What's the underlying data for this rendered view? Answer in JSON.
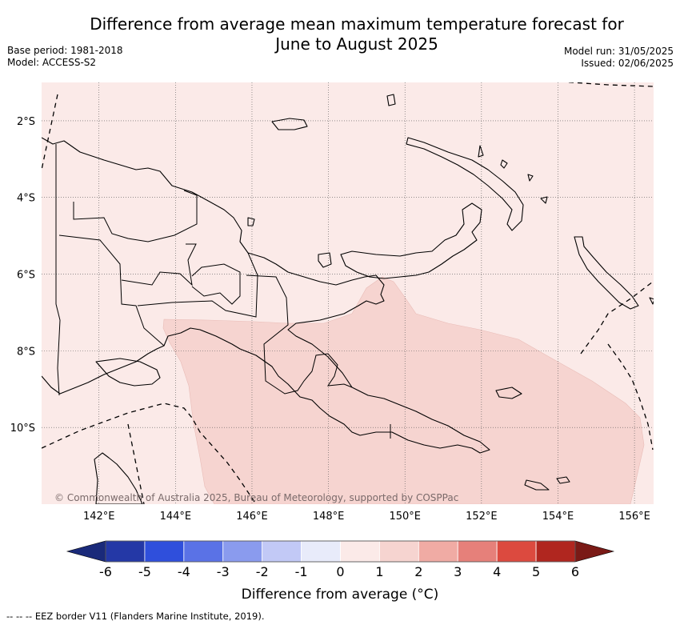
{
  "title": {
    "line1": "Difference from average mean maximum temperature forecast for",
    "line2": "June to August 2025"
  },
  "meta": {
    "base_period": "Base period: 1981-2018",
    "model": "Model: ACCESS-S2",
    "model_run": "Model run: 31/05/2025",
    "issued": "Issued: 02/06/2025"
  },
  "map": {
    "lon_range": [
      140.5,
      156.5
    ],
    "lat_range": [
      -12,
      -1
    ],
    "lon_ticks": [
      "142°E",
      "144°E",
      "146°E",
      "148°E",
      "150°E",
      "152°E",
      "154°E",
      "156°E"
    ],
    "lat_ticks": [
      "2°S",
      "4°S",
      "6°S",
      "8°S",
      "10°S"
    ],
    "background_anomaly_class": "0 to 1",
    "background_color": "#fbeae8",
    "warm_region_class": "1 to 2",
    "warm_region_color": "#f6d4d0",
    "copyright": "© Commonwealth of Australia 2025, Bureau of Meteorology, supported by COSPPac"
  },
  "colorbar": {
    "labels": [
      "-6",
      "-5",
      "-4",
      "-3",
      "-2",
      "-1",
      "0",
      "1",
      "2",
      "3",
      "4",
      "5",
      "6"
    ],
    "colors": [
      "#2438a6",
      "#2f4fdc",
      "#5a72e6",
      "#8a9bee",
      "#c2c9f6",
      "#e8ebfa",
      "#fbeae8",
      "#f6d4d0",
      "#f0aba4",
      "#e6807a",
      "#dc4a3f",
      "#b0261f"
    ],
    "under_color": "#1a2a7a",
    "over_color": "#7a1a16",
    "label": "Difference from average (°C)"
  },
  "footnote": "-- -- -- EEZ border V11 (Flanders Marine Institute, 2019)."
}
